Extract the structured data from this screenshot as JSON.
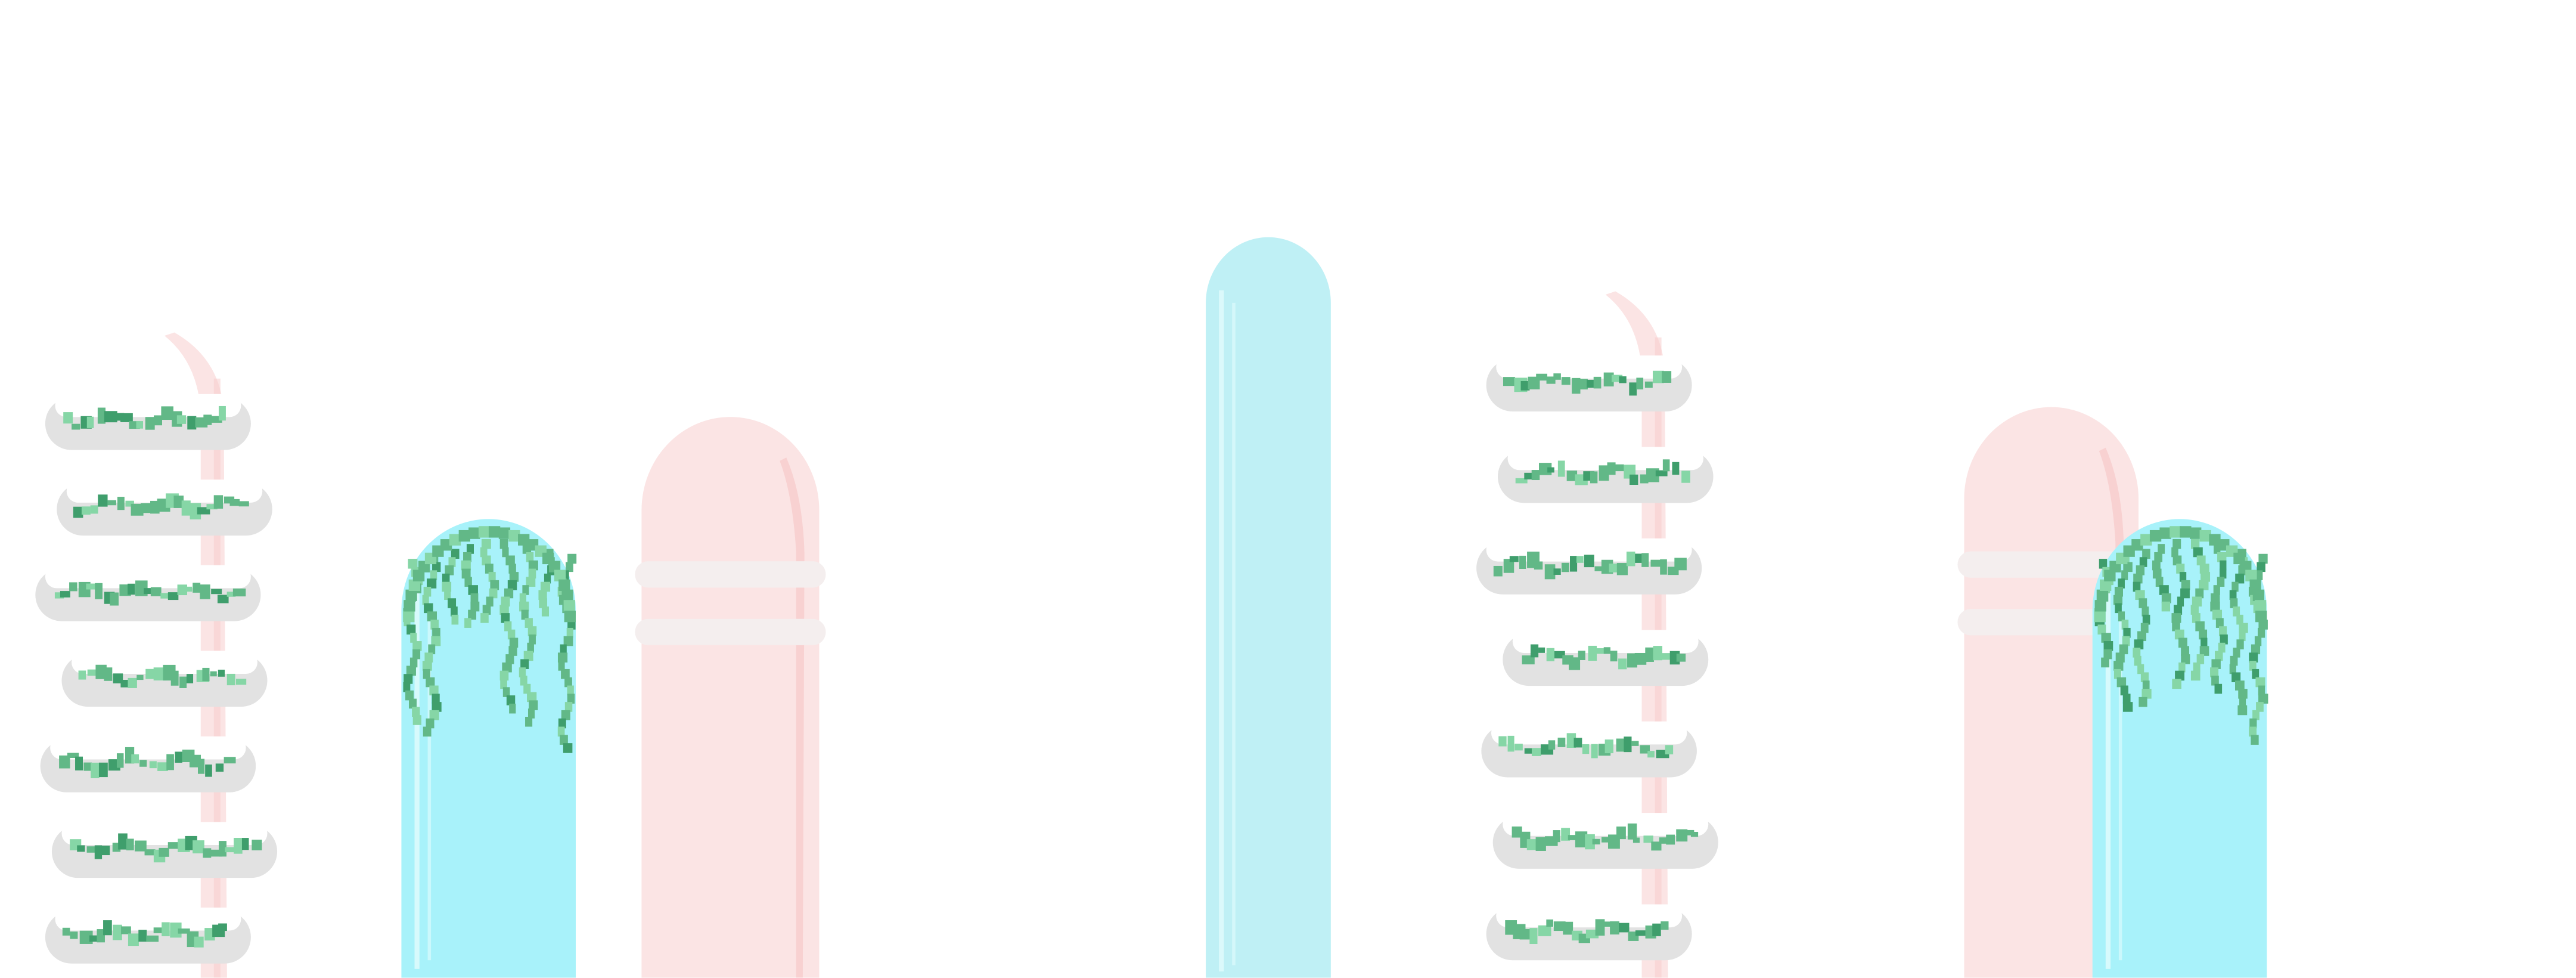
{
  "scene": {
    "background": "#ffffff",
    "palette": {
      "pink_pillar": "#fbe4e4",
      "pink_highlight": "#f7c9c9",
      "pink_band": "#f4eeee",
      "blue_pillar": "#a8f2fa",
      "blue_pillar_light": "#bff0f5",
      "blue_highlight": "#e2fbfd",
      "stone_ring": "#e2e2e2",
      "stone_ring_dark": "#d2d2d2",
      "vine": "#62b887",
      "vine_light": "#86d6a6",
      "vine_dark": "#3f9e6c"
    },
    "objects": [
      {
        "type": "spiral-stone-tower",
        "icon": "spiral-tower-icon",
        "ring_count": 7
      },
      {
        "type": "blue-pillar",
        "icon": "vine-covered-pillar-icon",
        "has_vines": true
      },
      {
        "type": "pink-pillar",
        "icon": "banded-pillar-icon",
        "band_count": 2
      },
      {
        "type": "blue-pillar",
        "icon": "tall-pillar-icon",
        "has_vines": false
      },
      {
        "type": "spiral-stone-tower",
        "icon": "spiral-tower-icon",
        "ring_count": 7
      },
      {
        "type": "pink-pillar",
        "icon": "banded-pillar-icon",
        "band_count": 2
      },
      {
        "type": "blue-pillar",
        "icon": "vine-covered-pillar-icon",
        "has_vines": true
      }
    ]
  }
}
